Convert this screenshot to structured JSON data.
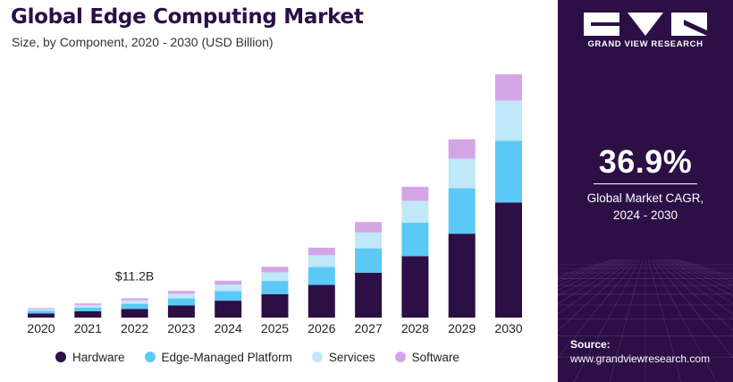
{
  "header": {
    "title": "Global Edge Computing Market",
    "subtitle": "Size, by Component, 2020 - 2030 (USD Billion)"
  },
  "colors": {
    "hardware": "#2b0f45",
    "edge_managed_platform": "#5bc8f5",
    "services": "#bfe8f8",
    "software": "#d4a5e6",
    "panel_bg": "#2b0f45"
  },
  "chart_data": {
    "type": "bar",
    "stacked": true,
    "title": "Global Edge Computing Market",
    "subtitle": "Size, by Component, 2020 - 2030 (USD Billion)",
    "categories": [
      "2020",
      "2021",
      "2022",
      "2023",
      "2024",
      "2025",
      "2026",
      "2027",
      "2028",
      "2029",
      "2030"
    ],
    "series": [
      {
        "name": "Hardware",
        "values": [
          2.4,
          3.6,
          5.0,
          7.0,
          9.8,
          13.6,
          18.9,
          26.0,
          35.6,
          48.6,
          66.6
        ]
      },
      {
        "name": "Edge-Managed Platform",
        "values": [
          1.5,
          2.2,
          3.0,
          4.1,
          5.6,
          7.6,
          10.4,
          14.1,
          19.3,
          26.3,
          35.7
        ]
      },
      {
        "name": "Services",
        "values": [
          1.0,
          1.5,
          2.0,
          2.7,
          3.7,
          5.0,
          6.8,
          9.2,
          12.6,
          17.1,
          23.2
        ]
      },
      {
        "name": "Software",
        "values": [
          0.6,
          0.9,
          1.2,
          1.7,
          2.3,
          3.2,
          4.4,
          6.0,
          8.2,
          11.2,
          15.3
        ]
      }
    ],
    "annotation": {
      "category": "2022",
      "text": "$11.2B"
    },
    "ylim": [
      0,
      145
    ],
    "grid": false,
    "legend_position": "bottom"
  },
  "brand": {
    "name": "GRAND VIEW RESEARCH",
    "logo_icon": "gvr-logo-icon"
  },
  "cagr": {
    "value": "36.9%",
    "label_line1": "Global Market CAGR,",
    "label_line2": "2024 - 2030"
  },
  "source": {
    "label": "Source:",
    "url": "www.grandviewresearch.com"
  }
}
